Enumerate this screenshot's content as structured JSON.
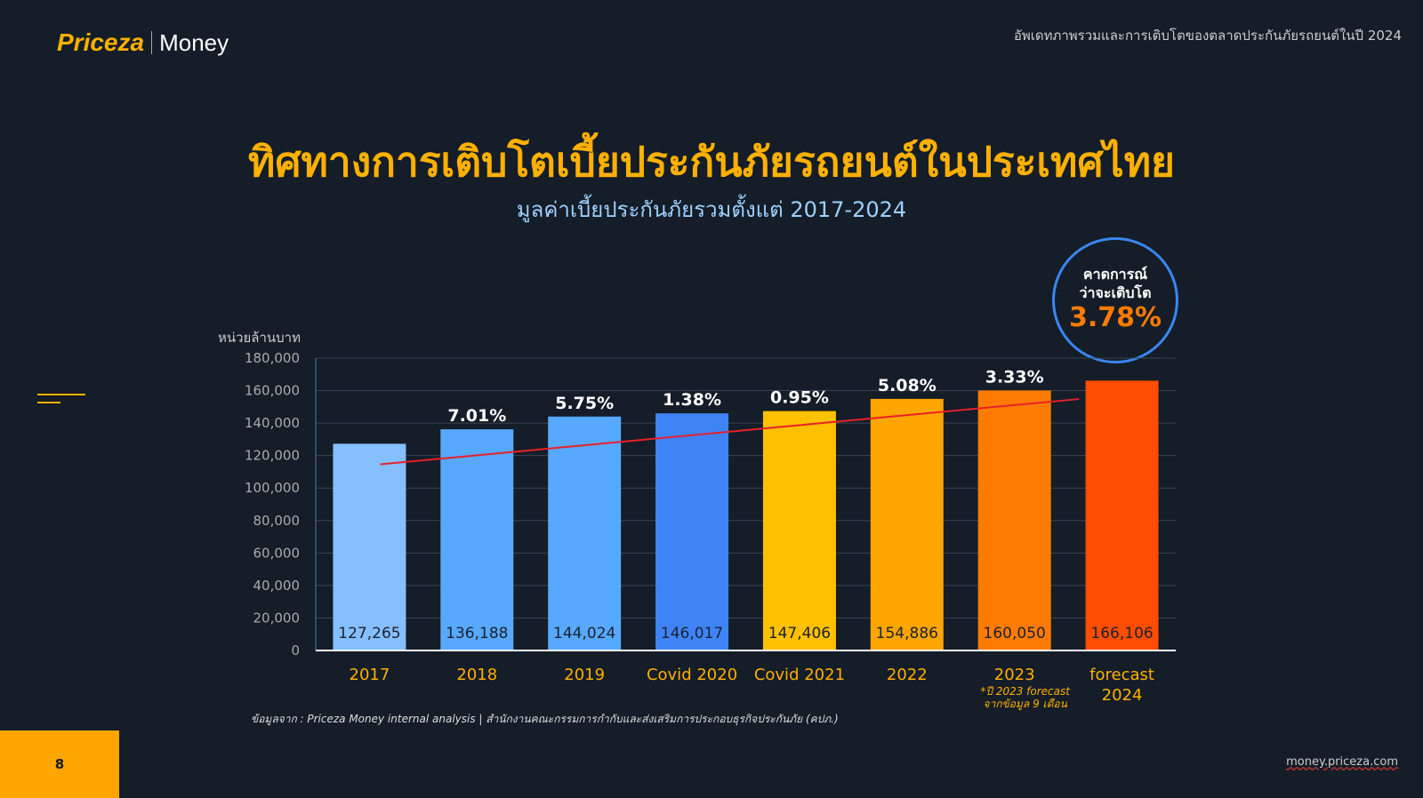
{
  "header": {
    "brand": "Priceza",
    "product": "Money",
    "top_right": "อัพเดทภาพรวมและการเติบโตของตลาดประกันภัยรถยนต์ในปี 2024"
  },
  "title": "ทิศทางการเติบโตเบี้ยประกันภัยรถยนต์ในประเทศไทย",
  "subtitle": "มูลค่าเบี้ยประกันภัยรวมตั้งแต่ 2017-2024",
  "callout": {
    "line1": "คาดการณ์",
    "line2": "ว่าจะเติบโต",
    "value": "3.78%"
  },
  "footer": {
    "source": "ข้อมูลจาก : Priceza Money internal analysis | สำนักงานคณะกรรมการกำกับและส่งเสริมการประกอบธุรกิจประกันภัย (คปภ.)",
    "page": "8",
    "site": "money.priceza.com"
  },
  "chart_data": {
    "type": "bar",
    "ylabel": "หน่วยล้านบาท",
    "ylim": [
      0,
      180000
    ],
    "yticks": [
      "0",
      "20,000",
      "40,000",
      "60,000",
      "80,000",
      "100,000",
      "120,000",
      "140,000",
      "160,000",
      "180,000"
    ],
    "grid": true,
    "categories": [
      "2017",
      "2018",
      "2019",
      "Covid 2020",
      "Covid 2021",
      "2022",
      "2023",
      "forecast 2024"
    ],
    "category_notes": [
      "",
      "",
      "",
      "",
      "",
      "",
      "*ปี 2023 forecast จากข้อมูล 9 เดือน",
      ""
    ],
    "values": [
      127265,
      136188,
      144024,
      146017,
      147406,
      154886,
      160050,
      166106
    ],
    "value_labels": [
      "127,265",
      "136,188",
      "144,024",
      "146,017",
      "147,406",
      "154,886",
      "160,050",
      "166,106"
    ],
    "growth_labels": [
      "",
      "7.01%",
      "5.75%",
      "1.38%",
      "0.95%",
      "5.08%",
      "3.33%",
      ""
    ],
    "bar_colors": [
      "#85bffe",
      "#57a8ff",
      "#57a8ff",
      "#3f84f7",
      "#ffc000",
      "#ffa500",
      "#ff7b00",
      "#ff4d00"
    ],
    "trendline": {
      "color": "#e8202a"
    }
  }
}
